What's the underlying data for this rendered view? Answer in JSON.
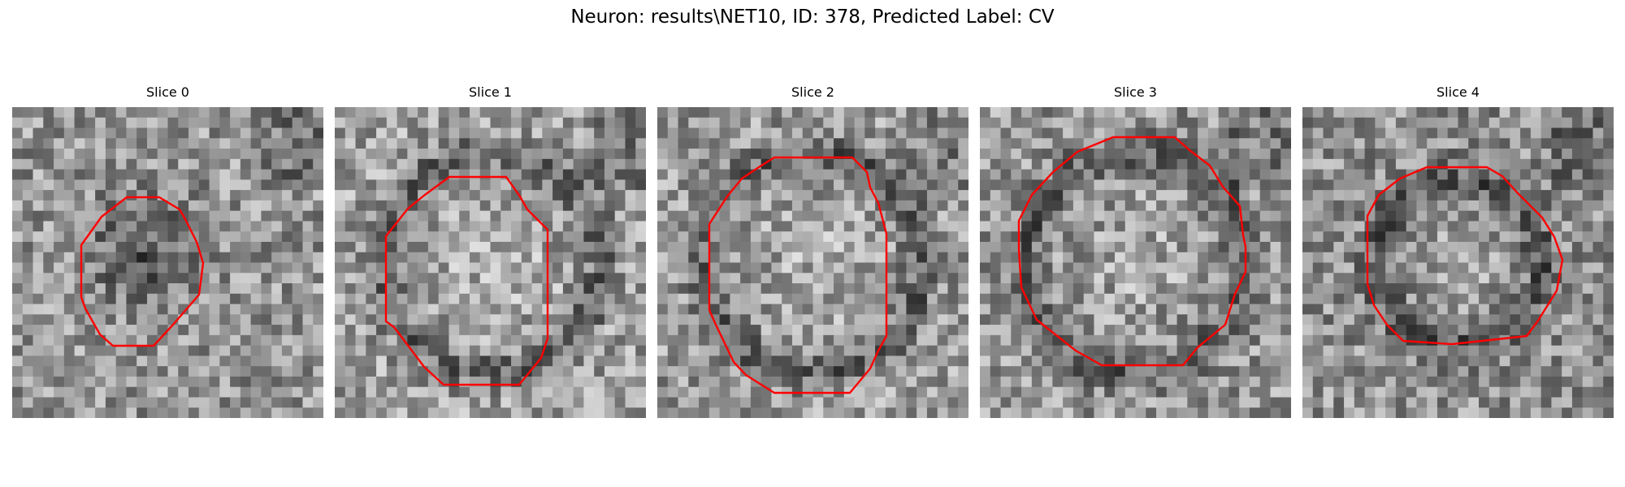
{
  "figure": {
    "title": "Neuron: results\\NET10, ID: 378, Predicted Label: CV",
    "outline_color": "#ff0000"
  },
  "panels": [
    {
      "title": "Slice 0",
      "brightness": 150,
      "seed": 11,
      "dark_region": "lower-center"
    },
    {
      "title": "Slice 1",
      "brightness": 160,
      "seed": 23,
      "dark_region": "ring"
    },
    {
      "title": "Slice 2",
      "brightness": 155,
      "seed": 37,
      "dark_region": "ring"
    },
    {
      "title": "Slice 3",
      "brightness": 150,
      "seed": 41,
      "dark_region": "ring"
    },
    {
      "title": "Slice 4",
      "brightness": 145,
      "seed": 59,
      "dark_region": "ring"
    }
  ]
}
